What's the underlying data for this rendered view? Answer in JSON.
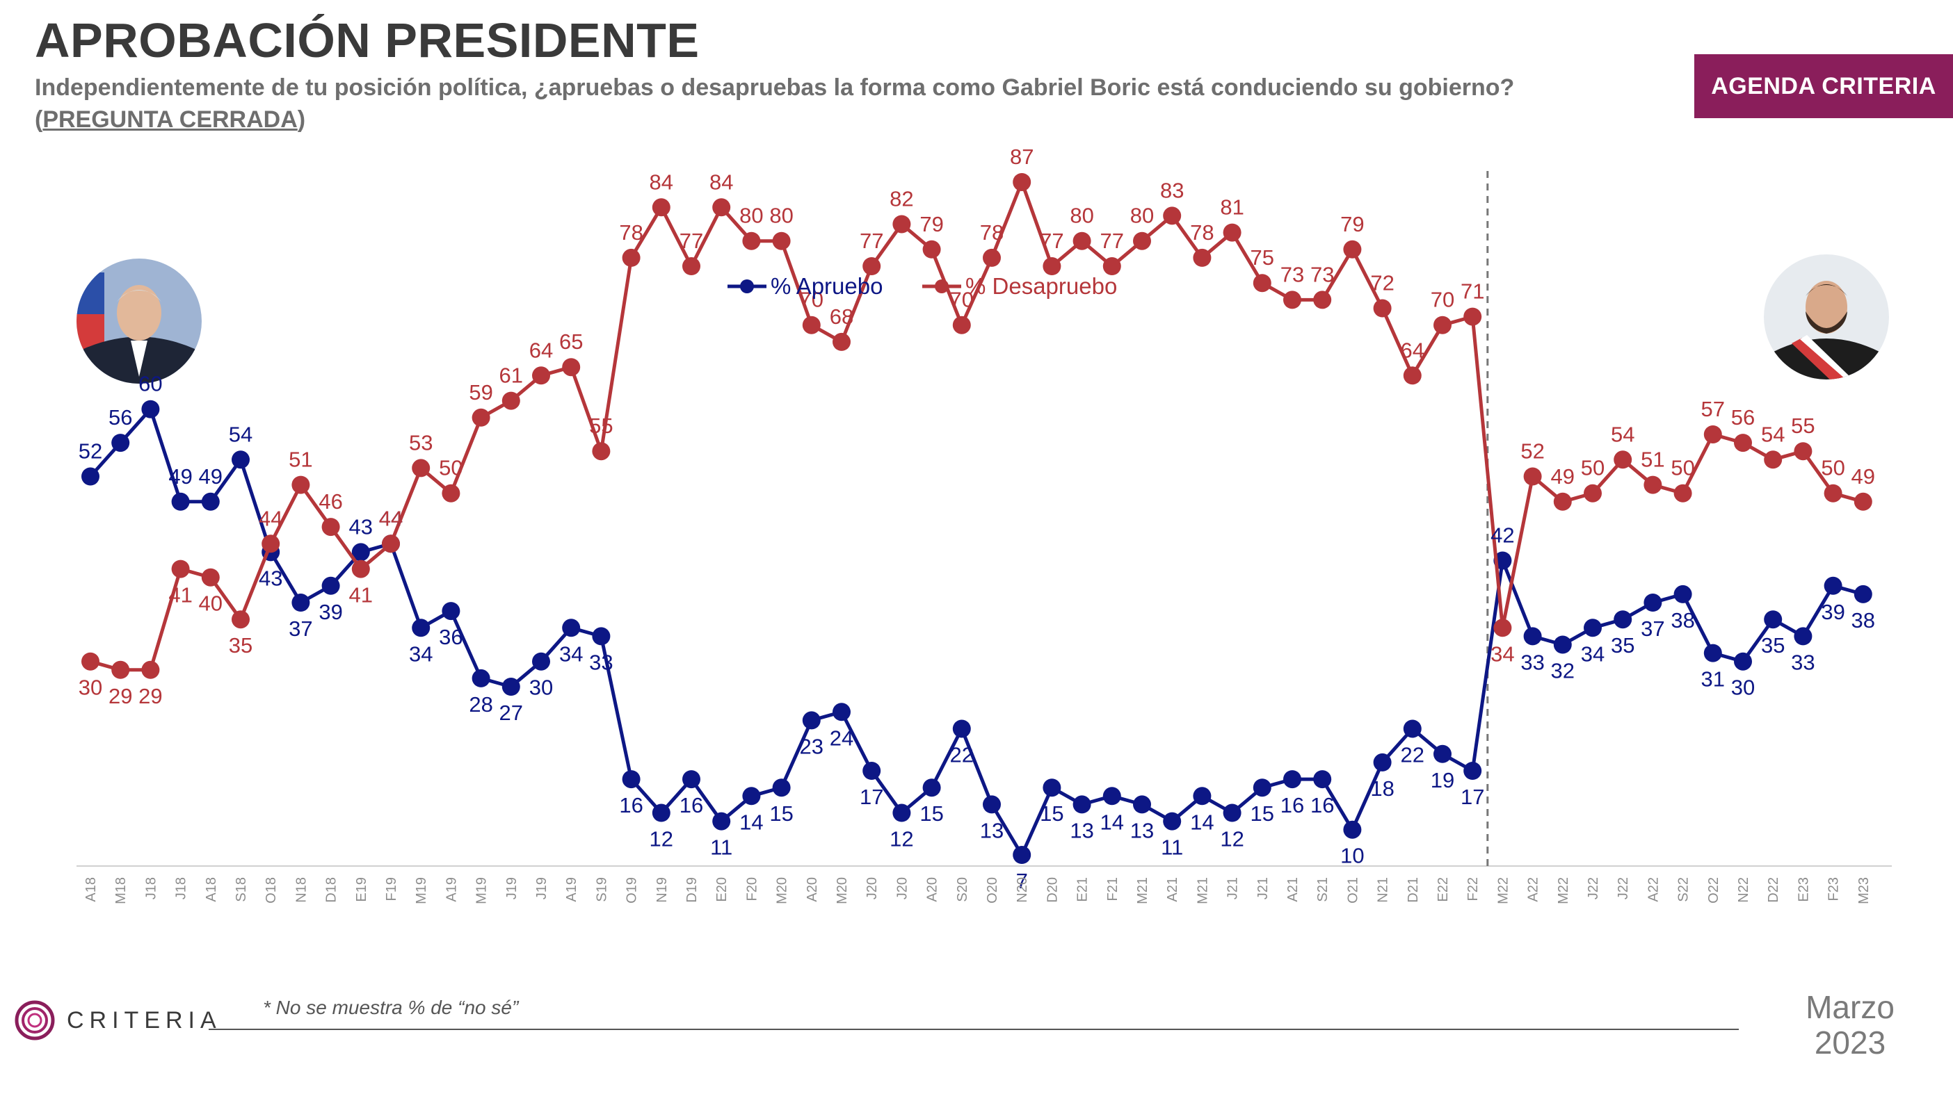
{
  "header": {
    "title": "APROBACIÓN PRESIDENTE",
    "subtitle_text": "Independientemente de tu posición política, ¿apruebas o desapruebas la forma como Gabriel Boric está conduciendo su gobierno? (",
    "subtitle_underlined": "PREGUNTA CERRADA",
    "subtitle_end": ")"
  },
  "badge": {
    "label": "AGENDA CRITERIA"
  },
  "footer": {
    "logo_text": "CRITERIA",
    "footnote": "* No se muestra % de “no sé”",
    "date_month": "Marzo",
    "date_year": "2023"
  },
  "colors": {
    "approve": "#0d1785",
    "disapprove": "#b5363a",
    "brand": "#8a1e5b",
    "axis_text": "#8c8c8c"
  },
  "chart_data": {
    "type": "line",
    "x": [
      "A18",
      "M18",
      "J18",
      "J18",
      "A18",
      "S18",
      "O18",
      "N18",
      "D18",
      "E19",
      "F19",
      "M19",
      "A19",
      "M19",
      "J19",
      "J19",
      "A19",
      "S19",
      "O19",
      "N19",
      "D19",
      "E20",
      "F20",
      "M20",
      "A20",
      "M20",
      "J20",
      "J20",
      "A20",
      "S20",
      "O20",
      "N20",
      "D20",
      "E21",
      "F21",
      "M21",
      "A21",
      "M21",
      "J21",
      "J21",
      "A21",
      "S21",
      "O21",
      "N21",
      "D21",
      "E22",
      "F22",
      "M22",
      "A22",
      "M22",
      "J22",
      "J22",
      "A22",
      "S22",
      "O22",
      "N22",
      "D22",
      "E23",
      "F23",
      "M23"
    ],
    "series": [
      {
        "name": "% Apruebo",
        "color": "#0d1785",
        "values": [
          52,
          56,
          60,
          49,
          49,
          54,
          43,
          37,
          39,
          43,
          44,
          34,
          36,
          28,
          27,
          30,
          34,
          33,
          16,
          12,
          16,
          11,
          14,
          15,
          23,
          24,
          17,
          12,
          15,
          22,
          13,
          7,
          15,
          13,
          14,
          13,
          11,
          14,
          12,
          15,
          16,
          16,
          10,
          18,
          22,
          19,
          17,
          42,
          33,
          32,
          34,
          35,
          37,
          38,
          31,
          30,
          35,
          33,
          39,
          38
        ]
      },
      {
        "name": "% Desapruebo",
        "color": "#b5363a",
        "values": [
          30,
          29,
          29,
          41,
          40,
          35,
          44,
          51,
          46,
          41,
          44,
          53,
          50,
          59,
          61,
          64,
          65,
          55,
          78,
          84,
          77,
          84,
          80,
          80,
          70,
          68,
          77,
          82,
          79,
          70,
          78,
          87,
          77,
          80,
          77,
          80,
          83,
          78,
          81,
          75,
          73,
          73,
          79,
          72,
          64,
          70,
          71,
          34,
          52,
          49,
          50,
          54,
          51,
          50,
          57,
          56,
          54,
          55,
          50,
          49
        ]
      }
    ],
    "period_divider_after": "F22",
    "legend_position": "top-center"
  }
}
